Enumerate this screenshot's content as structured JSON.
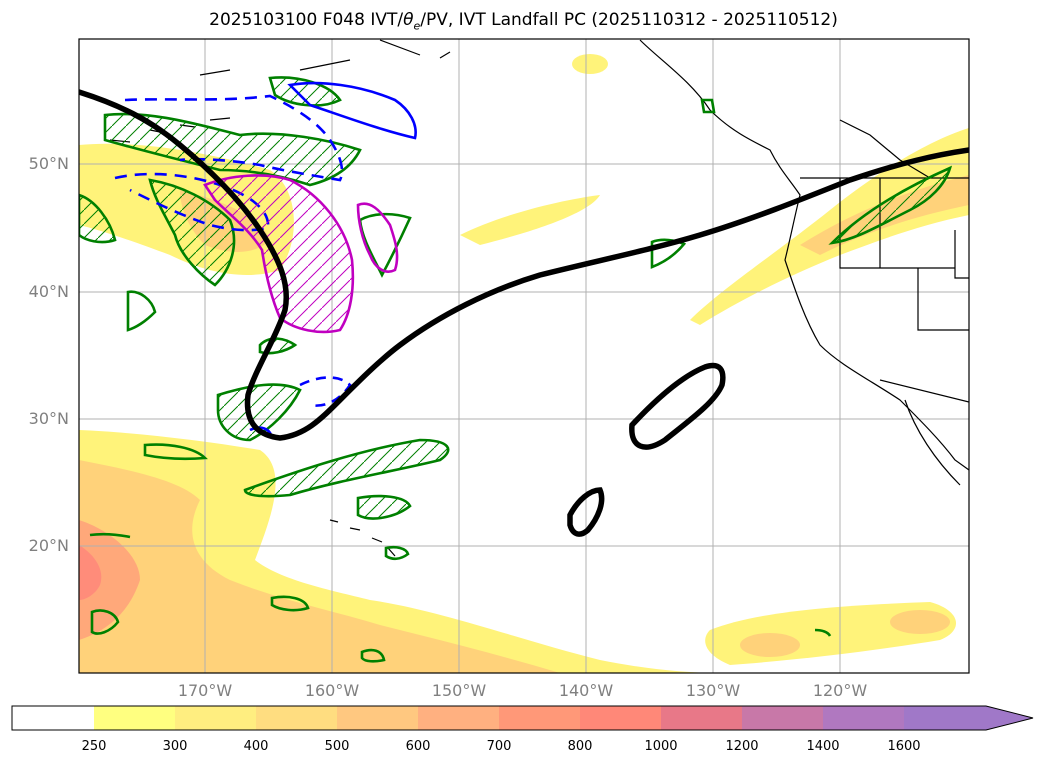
{
  "title": {
    "prefix": "2025103100 F048 IVT/",
    "theta": "θ",
    "theta_sub": "e",
    "suffix": "/PV, IVT Landfall PC (2025110312 - 2025110512)"
  },
  "axes": {
    "lat_labels": [
      "50°N",
      "40°N",
      "30°N",
      "20°N"
    ],
    "lon_labels": [
      "170°W",
      "160°W",
      "150°W",
      "140°W",
      "130°W",
      "120°W"
    ]
  },
  "colorbar": {
    "levels": [
      "250",
      "300",
      "400",
      "500",
      "600",
      "700",
      "800",
      "1000",
      "1200",
      "1400",
      "1600"
    ],
    "colors": [
      "#ffffff",
      "#ffff80",
      "#ffee80",
      "#ffdd80",
      "#ffc880",
      "#ffb080",
      "#ff9878",
      "#ff8878",
      "#e87888",
      "#c878a8",
      "#b078c0",
      "#a078c8"
    ]
  },
  "legend_colors": {
    "ivt_fill_low": "#fff37a",
    "ivt_fill_mid": "#ffd27a",
    "ivt_fill_high": "#ff8c7a",
    "pc_contour": "#000000",
    "pv_contour": "#008000",
    "theta_e_contour": "#0000ff",
    "magenta_contour": "#c000c0"
  }
}
